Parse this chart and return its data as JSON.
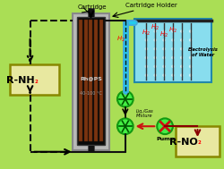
{
  "bg_outer": "#88cc44",
  "bg_inner": "#aade55",
  "bg_grad_top": "#c8ee80",
  "border_color": "#55aa22",
  "cartridge_label": "Cartridge",
  "holder_label": "Cartridge Holder",
  "rnh2_label_r": "R-",
  "rnh2_label_nh2": "NH",
  "rnh2_label_sub": "2",
  "rno2_label_r": "R-",
  "rno2_label_no2": "NO",
  "rno2_label_sub": "2",
  "electrolysis_label": "Electrolysis\nof Water",
  "liq_gas_label": "Liq./Gas\nMixture",
  "pump_label": "Pump",
  "rh_ps_label": "Rh@PS",
  "temp_label": "40-100 °C",
  "water_box_color": "#88ddee",
  "water_box_border": "#2288aa",
  "cartridge_gray": "#aaaaaa",
  "cartridge_dark": "#111111",
  "rod_colors": [
    "#7a3a10",
    "#5a2808"
  ],
  "rnh2_box_fill": "#e8e8a0",
  "rnh2_box_border": "#888800",
  "rno2_box_fill": "#e8e8a0",
  "rno2_box_border": "#888800",
  "black": "#000000",
  "red": "#cc2222",
  "dark_red": "#880000",
  "blue_pipe": "#44aadd",
  "cyan_pipe": "#22ccee",
  "green_mixer": "#44ee44",
  "green_mixer_border": "#119911",
  "dashed_color": "#111111",
  "arrow_red": "#cc1111"
}
